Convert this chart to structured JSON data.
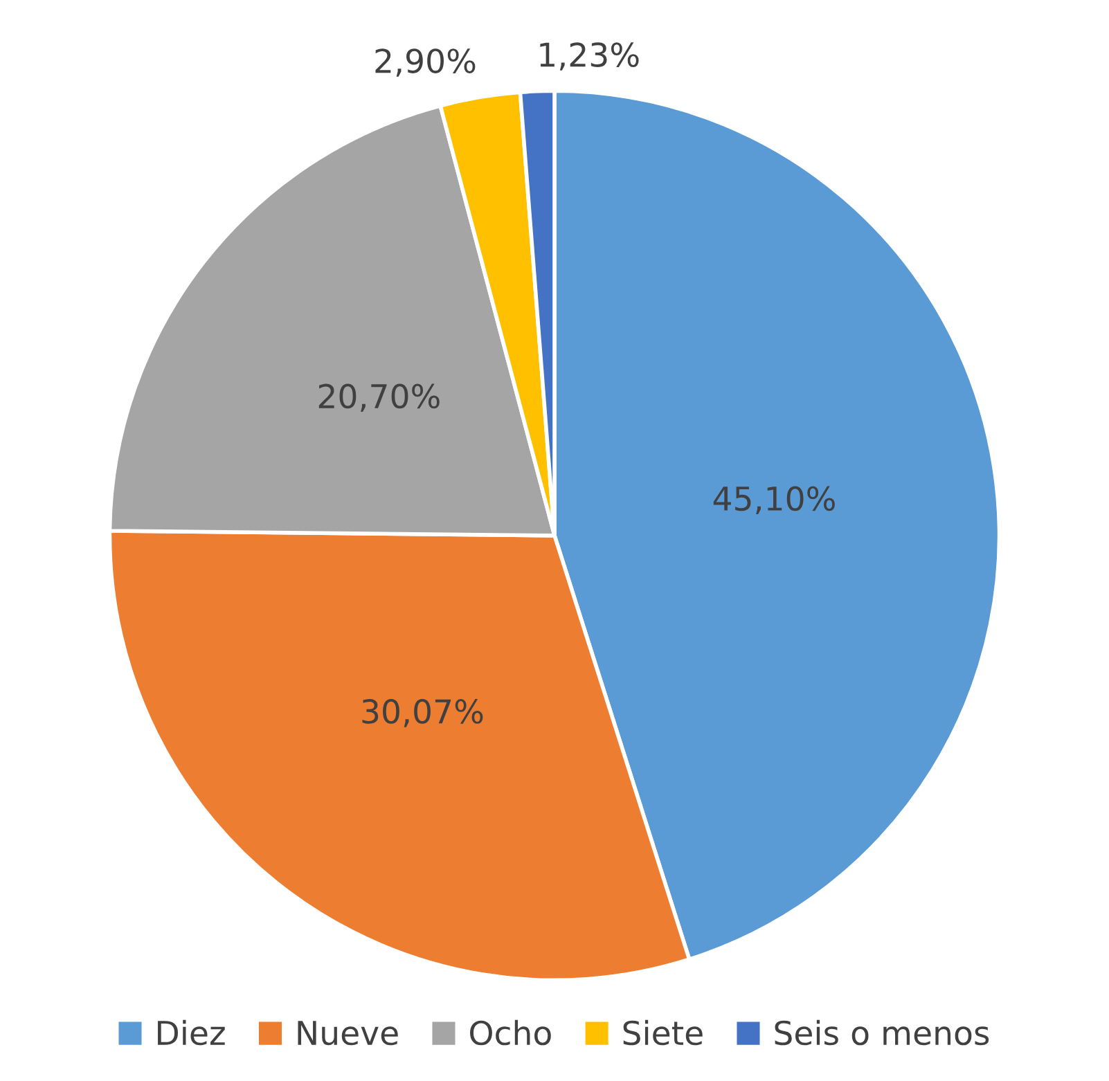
{
  "chart_data": {
    "type": "pie",
    "categories": [
      "Diez",
      "Nueve",
      "Ocho",
      "Siete",
      "Seis o menos"
    ],
    "values": [
      45.1,
      30.07,
      20.7,
      2.9,
      1.23
    ],
    "colors": [
      "#5b9bd5",
      "#ed7d31",
      "#a5a5a5",
      "#ffc000",
      "#4472c4"
    ],
    "value_labels": [
      "45,10%",
      "30,07%",
      "20,70%",
      "2,90%",
      "1,23%"
    ],
    "legend": "bottom"
  }
}
